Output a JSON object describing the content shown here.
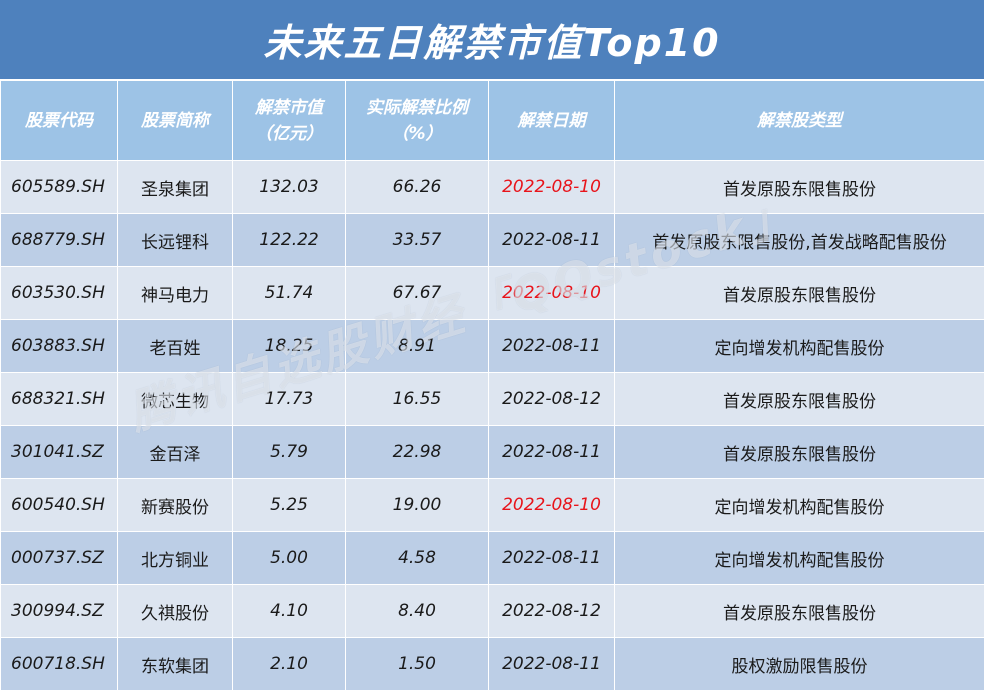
{
  "title": "未来五日解禁市值Top10",
  "headers": {
    "code": "股票代码",
    "name": "股票简称",
    "value_line1": "解禁市值",
    "value_line2": "（亿元）",
    "ratio_line1": "实际解禁比例",
    "ratio_line2": "（%）",
    "date": "解禁日期",
    "type": "解禁股类型"
  },
  "rows": [
    {
      "code": "605589.SH",
      "name": "圣泉集团",
      "value": "132.03",
      "ratio": "66.26",
      "date": "2022-08-10",
      "type": "首发原股东限售股份"
    },
    {
      "code": "688779.SH",
      "name": "长远锂科",
      "value": "122.22",
      "ratio": "33.57",
      "date": "2022-08-11",
      "type": "首发原股东限售股份,首发战略配售股份"
    },
    {
      "code": "603530.SH",
      "name": "神马电力",
      "value": "51.74",
      "ratio": "67.67",
      "date": "2022-08-10",
      "type": "首发原股东限售股份"
    },
    {
      "code": "603883.SH",
      "name": "老百姓",
      "value": "18.25",
      "ratio": "8.91",
      "date": "2022-08-11",
      "type": "定向增发机构配售股份"
    },
    {
      "code": "688321.SH",
      "name": "微芯生物",
      "value": "17.73",
      "ratio": "16.55",
      "date": "2022-08-12",
      "type": "首发原股东限售股份"
    },
    {
      "code": "301041.SZ",
      "name": "金百泽",
      "value": "5.79",
      "ratio": "22.98",
      "date": "2022-08-11",
      "type": "首发原股东限售股份"
    },
    {
      "code": "600540.SH",
      "name": "新赛股份",
      "value": "5.25",
      "ratio": "19.00",
      "date": "2022-08-10",
      "type": "定向增发机构配售股份"
    },
    {
      "code": "000737.SZ",
      "name": "北方铜业",
      "value": "5.00",
      "ratio": "4.58",
      "date": "2022-08-11",
      "type": "定向增发机构配售股份"
    },
    {
      "code": "300994.SZ",
      "name": "久祺股份",
      "value": "4.10",
      "ratio": "8.40",
      "date": "2022-08-12",
      "type": "首发原股东限售股份"
    },
    {
      "code": "600718.SH",
      "name": "东软集团",
      "value": "2.10",
      "ratio": "1.50",
      "date": "2022-08-11",
      "type": "股权激励限售股份"
    }
  ],
  "highlight_date": "2022-08-10",
  "watermark": "腾讯自选股财经「QQstock」",
  "colors": {
    "title_bg": "#4e81bd",
    "header_bg": "#9dc3e6",
    "row_light": "#dde5f0",
    "row_dark": "#bccee6",
    "highlight_text": "#e8141b"
  }
}
